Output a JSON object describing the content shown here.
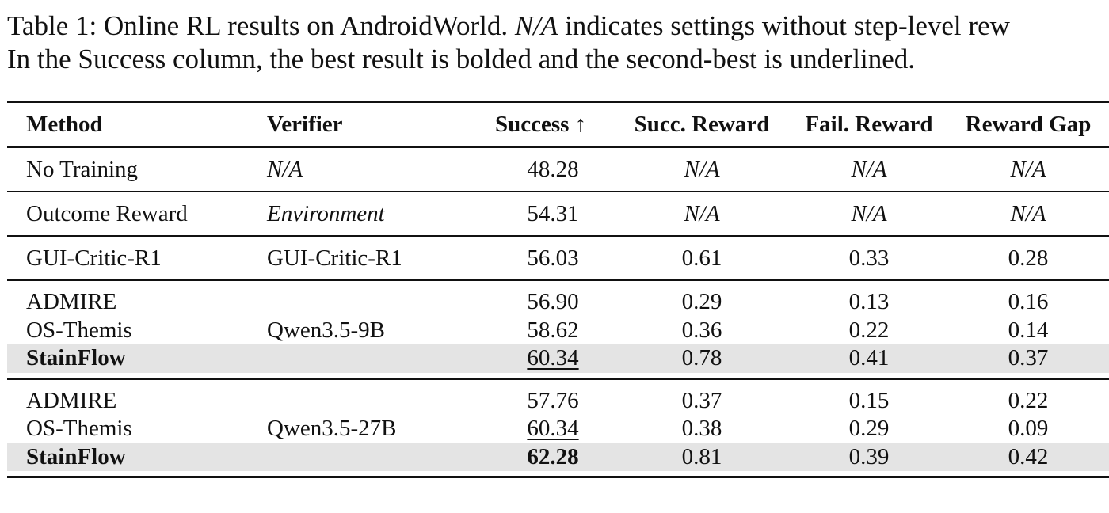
{
  "caption": {
    "label": "Table 1:",
    "text_part1": " Online RL results on AndroidWorld. ",
    "na_term": "N/A",
    "text_part2": " indicates settings without step-level rew",
    "line2": "In the Success column, the best result is bolded and the second-best is underlined."
  },
  "table": {
    "headers": {
      "method": "Method",
      "verifier": "Verifier",
      "success": "Success ↑",
      "succ_reward": "Succ. Reward",
      "fail_reward": "Fail. Reward",
      "reward_gap": "Reward Gap"
    },
    "single_rows": [
      {
        "method": "No Training",
        "verifier": "N/A",
        "success": "48.28",
        "succ_reward": "N/A",
        "fail_reward": "N/A",
        "reward_gap": "N/A"
      },
      {
        "method": "Outcome Reward",
        "verifier": "Environment",
        "success": "54.31",
        "succ_reward": "N/A",
        "fail_reward": "N/A",
        "reward_gap": "N/A"
      },
      {
        "method": "GUI-Critic-R1",
        "verifier": "GUI-Critic-R1",
        "success": "56.03",
        "succ_reward": "0.61",
        "fail_reward": "0.33",
        "reward_gap": "0.28"
      }
    ],
    "groups": [
      {
        "verifier": "Qwen3.5-9B",
        "rows": [
          {
            "method": "ADMIRE",
            "success": "56.90",
            "succ_reward": "0.29",
            "fail_reward": "0.13",
            "reward_gap": "0.16"
          },
          {
            "method": "OS-Themis",
            "success": "58.62",
            "succ_reward": "0.36",
            "fail_reward": "0.22",
            "reward_gap": "0.14"
          },
          {
            "method": "StainFlow",
            "success": "60.34",
            "succ_reward": "0.78",
            "fail_reward": "0.41",
            "reward_gap": "0.37"
          }
        ]
      },
      {
        "verifier": "Qwen3.5-27B",
        "rows": [
          {
            "method": "ADMIRE",
            "success": "57.76",
            "succ_reward": "0.37",
            "fail_reward": "0.15",
            "reward_gap": "0.22"
          },
          {
            "method": "OS-Themis",
            "success": "60.34",
            "succ_reward": "0.38",
            "fail_reward": "0.29",
            "reward_gap": "0.09"
          },
          {
            "method": "StainFlow",
            "success": "62.28",
            "succ_reward": "0.81",
            "fail_reward": "0.39",
            "reward_gap": "0.42"
          }
        ]
      }
    ]
  }
}
